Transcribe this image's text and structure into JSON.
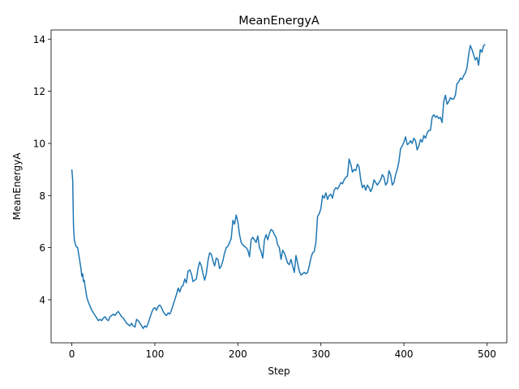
{
  "chart_data": {
    "type": "line",
    "title": "MeanEnergyA",
    "xlabel": "Step",
    "ylabel": "MeanEnergyA",
    "xlim": [
      -25,
      524
    ],
    "ylim": [
      2.35,
      14.35
    ],
    "xticks": [
      0,
      100,
      200,
      300,
      400,
      500
    ],
    "yticks": [
      4,
      6,
      8,
      10,
      12,
      14
    ],
    "grid": false,
    "legend": "none",
    "line_color": "#1f77b4",
    "series": [
      {
        "points": [
          [
            0,
            9.0
          ],
          [
            1,
            8.6
          ],
          [
            2,
            6.8
          ],
          [
            3,
            6.3
          ],
          [
            5,
            6.05
          ],
          [
            7,
            6.0
          ],
          [
            9,
            5.6
          ],
          [
            11,
            5.2
          ],
          [
            12,
            4.9
          ],
          [
            13,
            5.0
          ],
          [
            14,
            4.7
          ],
          [
            15,
            4.75
          ],
          [
            16,
            4.5
          ],
          [
            17,
            4.3
          ],
          [
            18,
            4.1
          ],
          [
            20,
            3.9
          ],
          [
            22,
            3.75
          ],
          [
            24,
            3.6
          ],
          [
            26,
            3.5
          ],
          [
            28,
            3.4
          ],
          [
            30,
            3.3
          ],
          [
            32,
            3.2
          ],
          [
            34,
            3.25
          ],
          [
            36,
            3.2
          ],
          [
            38,
            3.3
          ],
          [
            40,
            3.35
          ],
          [
            42,
            3.25
          ],
          [
            44,
            3.2
          ],
          [
            46,
            3.35
          ],
          [
            48,
            3.4
          ],
          [
            50,
            3.45
          ],
          [
            52,
            3.4
          ],
          [
            54,
            3.5
          ],
          [
            56,
            3.55
          ],
          [
            58,
            3.45
          ],
          [
            60,
            3.35
          ],
          [
            62,
            3.3
          ],
          [
            64,
            3.2
          ],
          [
            66,
            3.1
          ],
          [
            68,
            3.05
          ],
          [
            70,
            3.0
          ],
          [
            72,
            3.1
          ],
          [
            74,
            3.0
          ],
          [
            76,
            2.95
          ],
          [
            78,
            3.25
          ],
          [
            80,
            3.2
          ],
          [
            82,
            3.1
          ],
          [
            84,
            3.0
          ],
          [
            86,
            2.9
          ],
          [
            88,
            3.0
          ],
          [
            90,
            2.95
          ],
          [
            92,
            3.1
          ],
          [
            94,
            3.3
          ],
          [
            96,
            3.5
          ],
          [
            98,
            3.65
          ],
          [
            100,
            3.7
          ],
          [
            102,
            3.6
          ],
          [
            104,
            3.75
          ],
          [
            106,
            3.8
          ],
          [
            108,
            3.7
          ],
          [
            110,
            3.55
          ],
          [
            112,
            3.45
          ],
          [
            114,
            3.4
          ],
          [
            116,
            3.5
          ],
          [
            118,
            3.45
          ],
          [
            120,
            3.6
          ],
          [
            122,
            3.8
          ],
          [
            124,
            4.0
          ],
          [
            126,
            4.2
          ],
          [
            128,
            4.45
          ],
          [
            130,
            4.3
          ],
          [
            132,
            4.5
          ],
          [
            134,
            4.55
          ],
          [
            136,
            4.8
          ],
          [
            138,
            4.65
          ],
          [
            140,
            5.1
          ],
          [
            142,
            5.15
          ],
          [
            144,
            5.0
          ],
          [
            146,
            4.7
          ],
          [
            148,
            4.75
          ],
          [
            150,
            4.8
          ],
          [
            152,
            5.2
          ],
          [
            154,
            5.45
          ],
          [
            156,
            5.3
          ],
          [
            158,
            5.0
          ],
          [
            160,
            4.75
          ],
          [
            162,
            5.0
          ],
          [
            164,
            5.5
          ],
          [
            166,
            5.8
          ],
          [
            168,
            5.75
          ],
          [
            170,
            5.5
          ],
          [
            172,
            5.3
          ],
          [
            174,
            5.6
          ],
          [
            176,
            5.55
          ],
          [
            178,
            5.2
          ],
          [
            180,
            5.3
          ],
          [
            182,
            5.5
          ],
          [
            184,
            5.8
          ],
          [
            186,
            6.0
          ],
          [
            188,
            6.05
          ],
          [
            190,
            6.2
          ],
          [
            192,
            6.35
          ],
          [
            194,
            7.05
          ],
          [
            196,
            6.9
          ],
          [
            198,
            7.25
          ],
          [
            200,
            7.0
          ],
          [
            202,
            6.5
          ],
          [
            204,
            6.2
          ],
          [
            206,
            6.1
          ],
          [
            208,
            6.05
          ],
          [
            210,
            6.0
          ],
          [
            212,
            5.9
          ],
          [
            214,
            5.65
          ],
          [
            216,
            6.3
          ],
          [
            218,
            6.4
          ],
          [
            220,
            6.3
          ],
          [
            222,
            6.2
          ],
          [
            224,
            6.45
          ],
          [
            226,
            6.0
          ],
          [
            228,
            5.85
          ],
          [
            230,
            5.6
          ],
          [
            232,
            6.3
          ],
          [
            234,
            6.5
          ],
          [
            236,
            6.3
          ],
          [
            238,
            6.55
          ],
          [
            240,
            6.7
          ],
          [
            242,
            6.65
          ],
          [
            244,
            6.5
          ],
          [
            246,
            6.4
          ],
          [
            248,
            6.1
          ],
          [
            250,
            6.0
          ],
          [
            252,
            5.55
          ],
          [
            254,
            5.9
          ],
          [
            256,
            5.8
          ],
          [
            258,
            5.6
          ],
          [
            260,
            5.4
          ],
          [
            262,
            5.35
          ],
          [
            264,
            5.55
          ],
          [
            266,
            5.3
          ],
          [
            268,
            5.05
          ],
          [
            270,
            5.7
          ],
          [
            272,
            5.4
          ],
          [
            274,
            5.1
          ],
          [
            276,
            4.95
          ],
          [
            278,
            5.0
          ],
          [
            280,
            5.05
          ],
          [
            282,
            5.0
          ],
          [
            284,
            5.05
          ],
          [
            286,
            5.3
          ],
          [
            288,
            5.6
          ],
          [
            290,
            5.8
          ],
          [
            292,
            5.85
          ],
          [
            294,
            6.2
          ],
          [
            296,
            7.2
          ],
          [
            298,
            7.3
          ],
          [
            300,
            7.5
          ],
          [
            302,
            8.0
          ],
          [
            304,
            7.9
          ],
          [
            306,
            8.1
          ],
          [
            308,
            7.85
          ],
          [
            310,
            8.0
          ],
          [
            312,
            8.05
          ],
          [
            314,
            7.9
          ],
          [
            316,
            8.2
          ],
          [
            318,
            8.3
          ],
          [
            320,
            8.25
          ],
          [
            322,
            8.35
          ],
          [
            324,
            8.5
          ],
          [
            326,
            8.45
          ],
          [
            328,
            8.6
          ],
          [
            330,
            8.7
          ],
          [
            332,
            8.75
          ],
          [
            334,
            9.4
          ],
          [
            336,
            9.2
          ],
          [
            338,
            8.9
          ],
          [
            340,
            9.0
          ],
          [
            342,
            8.95
          ],
          [
            344,
            9.2
          ],
          [
            346,
            9.1
          ],
          [
            348,
            8.6
          ],
          [
            350,
            8.3
          ],
          [
            352,
            8.4
          ],
          [
            354,
            8.2
          ],
          [
            356,
            8.4
          ],
          [
            358,
            8.3
          ],
          [
            360,
            8.15
          ],
          [
            362,
            8.3
          ],
          [
            364,
            8.6
          ],
          [
            366,
            8.5
          ],
          [
            368,
            8.4
          ],
          [
            370,
            8.5
          ],
          [
            372,
            8.6
          ],
          [
            374,
            8.8
          ],
          [
            376,
            8.7
          ],
          [
            378,
            8.4
          ],
          [
            380,
            8.5
          ],
          [
            382,
            8.95
          ],
          [
            384,
            8.8
          ],
          [
            386,
            8.4
          ],
          [
            388,
            8.5
          ],
          [
            390,
            8.8
          ],
          [
            392,
            9.0
          ],
          [
            394,
            9.3
          ],
          [
            396,
            9.8
          ],
          [
            398,
            9.9
          ],
          [
            400,
            10.05
          ],
          [
            402,
            10.25
          ],
          [
            404,
            9.95
          ],
          [
            406,
            10.0
          ],
          [
            408,
            10.1
          ],
          [
            410,
            10.0
          ],
          [
            412,
            10.2
          ],
          [
            414,
            10.1
          ],
          [
            416,
            9.75
          ],
          [
            418,
            9.9
          ],
          [
            420,
            10.15
          ],
          [
            422,
            10.05
          ],
          [
            424,
            10.3
          ],
          [
            426,
            10.2
          ],
          [
            428,
            10.4
          ],
          [
            430,
            10.5
          ],
          [
            432,
            10.5
          ],
          [
            434,
            11.0
          ],
          [
            436,
            11.1
          ],
          [
            438,
            11.0
          ],
          [
            440,
            11.05
          ],
          [
            442,
            10.95
          ],
          [
            444,
            11.0
          ],
          [
            446,
            10.8
          ],
          [
            448,
            11.6
          ],
          [
            450,
            11.85
          ],
          [
            452,
            11.5
          ],
          [
            454,
            11.6
          ],
          [
            456,
            11.75
          ],
          [
            458,
            11.7
          ],
          [
            460,
            11.7
          ],
          [
            462,
            11.85
          ],
          [
            464,
            12.3
          ],
          [
            466,
            12.35
          ],
          [
            468,
            12.5
          ],
          [
            470,
            12.45
          ],
          [
            472,
            12.6
          ],
          [
            474,
            12.7
          ],
          [
            476,
            12.9
          ],
          [
            478,
            13.4
          ],
          [
            480,
            13.75
          ],
          [
            482,
            13.6
          ],
          [
            484,
            13.4
          ],
          [
            486,
            13.2
          ],
          [
            488,
            13.3
          ],
          [
            490,
            13.0
          ],
          [
            492,
            13.6
          ],
          [
            494,
            13.5
          ],
          [
            496,
            13.75
          ],
          [
            498,
            13.8
          ]
        ]
      }
    ]
  }
}
